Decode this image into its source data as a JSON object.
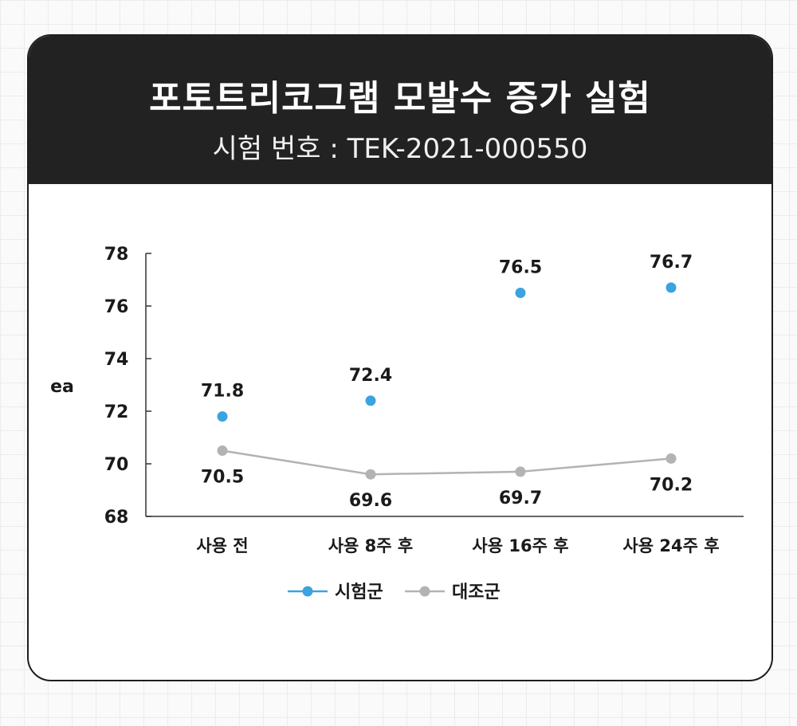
{
  "header": {
    "title": "포토트리코그램 모발수 증가 실험",
    "subtitle": "시험 번호 : TEK-2021-000550"
  },
  "chart_data": {
    "type": "line",
    "ylabel": "ea",
    "xlabel": "",
    "ylim": [
      68,
      78
    ],
    "yticks": [
      68,
      70,
      72,
      74,
      76,
      78
    ],
    "categories": [
      "사용 전",
      "사용 8주 후",
      "사용 16주 후",
      "사용 24주 후"
    ],
    "series": [
      {
        "name": "시험군",
        "values": [
          71.8,
          72.4,
          76.5,
          76.7
        ],
        "labels": [
          "71.8",
          "72.4",
          "76.5",
          "76.7"
        ],
        "color": "#3ba3e0",
        "connect": false,
        "label_position": "above"
      },
      {
        "name": "대조군",
        "values": [
          70.5,
          69.6,
          69.7,
          70.2
        ],
        "labels": [
          "70.5",
          "69.6",
          "69.7",
          "70.2"
        ],
        "color": "#b3b3b3",
        "connect": true,
        "label_position": "below"
      }
    ],
    "legend_position": "bottom-center",
    "grid": false
  }
}
